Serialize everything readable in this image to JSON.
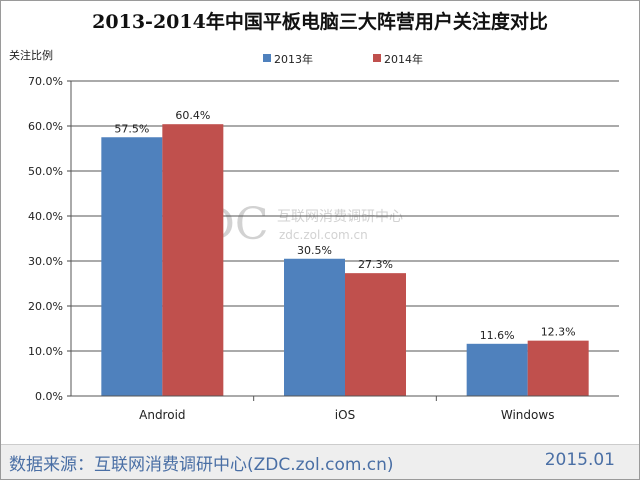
{
  "footer": {
    "source": "数据来源：互联网消费调研中心(ZDC.zol.com.cn)",
    "date": "2015.01"
  },
  "watermark": {
    "logo": "ZDC",
    "name": "互联网消费调研中心",
    "url": "zdc.zol.com.cn"
  },
  "colors": {
    "series_2013": "#4f81bd",
    "series_2014": "#c0504d",
    "gridline": "#555555"
  },
  "chart_data": {
    "type": "bar",
    "title": "2013-2014年中国平板电脑三大阵营用户关注度对比",
    "ylabel": "关注比例",
    "xlabel": "",
    "categories": [
      "Android",
      "iOS",
      "Windows"
    ],
    "series": [
      {
        "name": "2013年",
        "values": [
          57.5,
          30.5,
          11.6
        ],
        "labels": [
          "57.5%",
          "30.5%",
          "11.6%"
        ]
      },
      {
        "name": "2014年",
        "values": [
          60.4,
          27.3,
          12.3
        ],
        "labels": [
          "60.4%",
          "27.3%",
          "12.3%"
        ]
      }
    ],
    "ylim": [
      0,
      70
    ],
    "yticks": [
      "0.0%",
      "10.0%",
      "20.0%",
      "30.0%",
      "40.0%",
      "50.0%",
      "60.0%",
      "70.0%"
    ],
    "grid": true,
    "legend_position": "top"
  }
}
